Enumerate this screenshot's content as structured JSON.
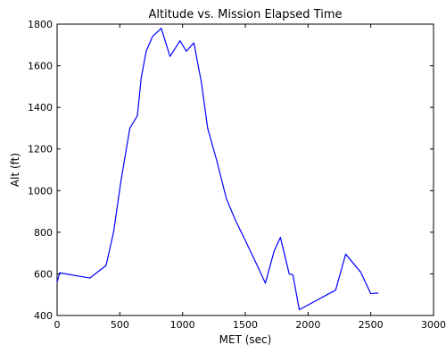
{
  "chart_data": {
    "type": "line",
    "title": "Altitude vs. Mission Elapsed Time",
    "xlabel": "MET (sec)",
    "ylabel": "Alt (ft)",
    "xlim": [
      0,
      3000
    ],
    "ylim": [
      400,
      1800
    ],
    "xticks": [
      0,
      500,
      1000,
      1500,
      2000,
      2500,
      3000
    ],
    "yticks": [
      400,
      600,
      800,
      1000,
      1200,
      1400,
      1600,
      1800
    ],
    "grid": false,
    "series": [
      {
        "color": "#0000ff",
        "x": [
          0,
          20,
          260,
          390,
          450,
          510,
          580,
          640,
          670,
          710,
          760,
          830,
          900,
          980,
          1030,
          1090,
          1150,
          1200,
          1270,
          1350,
          1420,
          1500,
          1580,
          1660,
          1730,
          1780,
          1850,
          1880,
          1930,
          2220,
          2300,
          2420,
          2500,
          2560
        ],
        "y": [
          560,
          605,
          580,
          640,
          800,
          1050,
          1300,
          1360,
          1540,
          1670,
          1740,
          1780,
          1645,
          1720,
          1670,
          1710,
          1520,
          1300,
          1150,
          960,
          860,
          760,
          660,
          555,
          710,
          775,
          600,
          595,
          428,
          522,
          695,
          608,
          505,
          508
        ]
      }
    ]
  }
}
